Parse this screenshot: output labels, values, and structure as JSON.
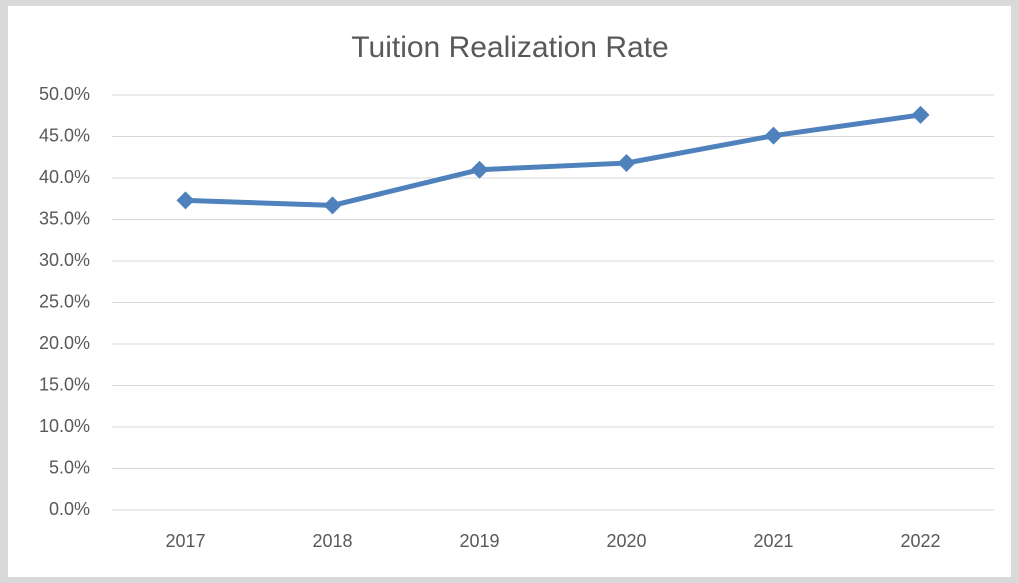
{
  "chart_data": {
    "type": "line",
    "title": "Tuition Realization Rate",
    "categories": [
      "2017",
      "2018",
      "2019",
      "2020",
      "2021",
      "2022"
    ],
    "values": [
      37.3,
      36.7,
      41.0,
      41.8,
      45.1,
      47.6
    ],
    "color": "#4f81bd",
    "ylim": [
      0,
      50
    ],
    "yticks": [
      {
        "value": 0,
        "label": "0.0%"
      },
      {
        "value": 5,
        "label": "5.0%"
      },
      {
        "value": 10,
        "label": "10.0%"
      },
      {
        "value": 15,
        "label": "15.0%"
      },
      {
        "value": 20,
        "label": "20.0%"
      },
      {
        "value": 25,
        "label": "25.0%"
      },
      {
        "value": 30,
        "label": "30.0%"
      },
      {
        "value": 35,
        "label": "35.0%"
      },
      {
        "value": 40,
        "label": "40.0%"
      },
      {
        "value": 45,
        "label": "45.0%"
      },
      {
        "value": 50,
        "label": "50.0%"
      }
    ],
    "grid": true
  }
}
